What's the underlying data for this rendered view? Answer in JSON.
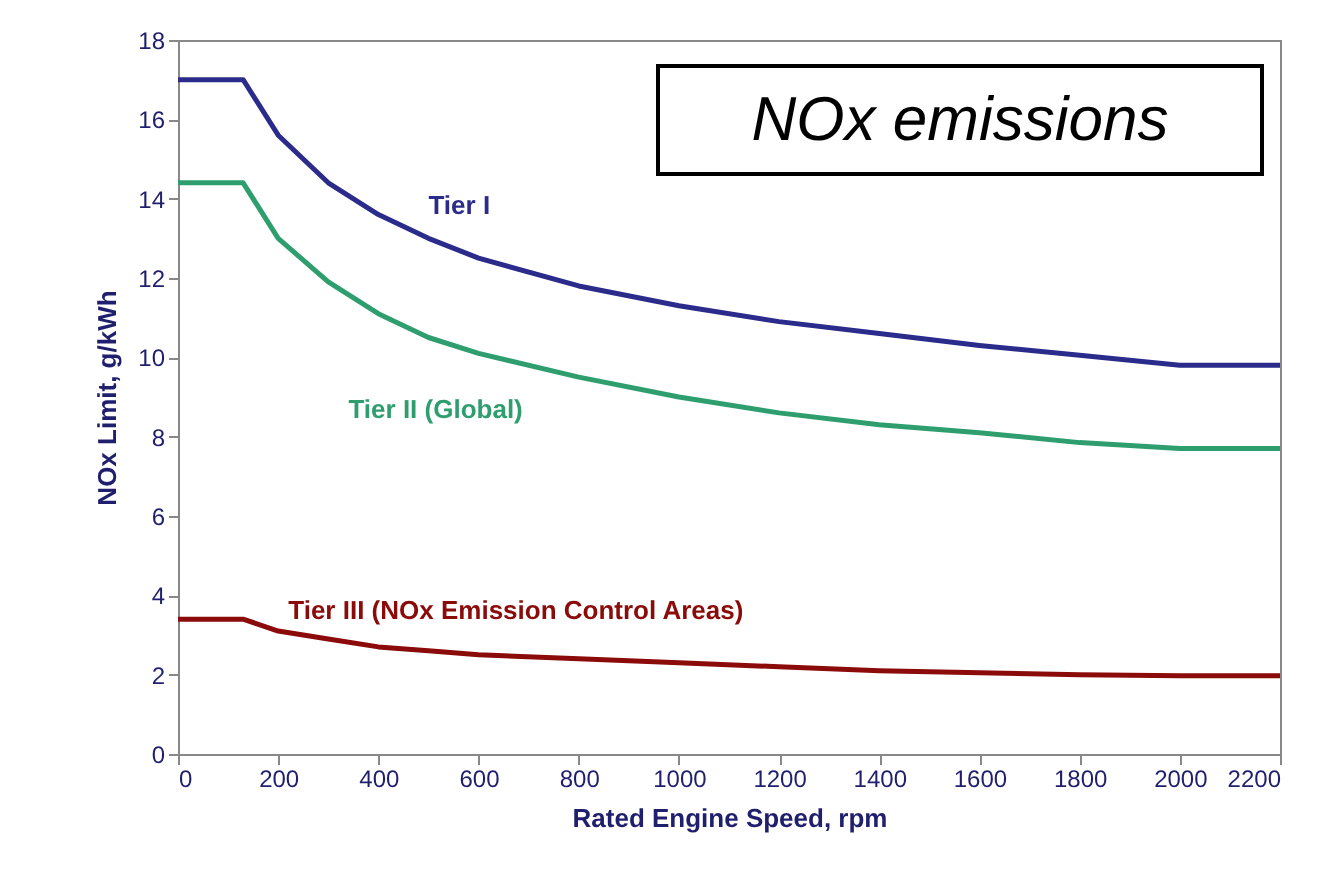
{
  "chart_data": {
    "type": "line",
    "title": "NOx emissions",
    "xlabel": "Rated Engine Speed, rpm",
    "ylabel": "NOx Limit, g/kWh",
    "xlim": [
      0,
      2200
    ],
    "xticks": [
      0,
      200,
      400,
      600,
      800,
      1000,
      1200,
      1400,
      1600,
      1800,
      2000,
      2200
    ],
    "ylim": [
      0,
      18
    ],
    "yticks": [
      0,
      2,
      4,
      6,
      8,
      10,
      12,
      14,
      16,
      18
    ],
    "grid": false,
    "x": [
      0,
      130,
      200,
      300,
      400,
      500,
      600,
      800,
      1000,
      1200,
      1400,
      1600,
      1800,
      2000,
      2200
    ],
    "series": [
      {
        "name": "Tier I",
        "color": "#2b2b8c",
        "values": [
          17.0,
          17.0,
          15.6,
          14.4,
          13.6,
          13.0,
          12.5,
          11.8,
          11.3,
          10.9,
          10.6,
          10.3,
          10.05,
          9.8,
          9.8
        ]
      },
      {
        "name": "Tier II (Global)",
        "color": "#2f9e6e",
        "values": [
          14.4,
          14.4,
          13.0,
          11.9,
          11.1,
          10.5,
          10.1,
          9.5,
          9.0,
          8.6,
          8.3,
          8.1,
          7.85,
          7.7,
          7.7
        ]
      },
      {
        "name": "Tier III (NOx Emission Control Areas)",
        "color": "#8b0a0a",
        "values": [
          3.4,
          3.4,
          3.1,
          2.9,
          2.7,
          2.6,
          2.5,
          2.4,
          2.3,
          2.2,
          2.1,
          2.05,
          2.0,
          1.97,
          1.97
        ]
      }
    ]
  }
}
